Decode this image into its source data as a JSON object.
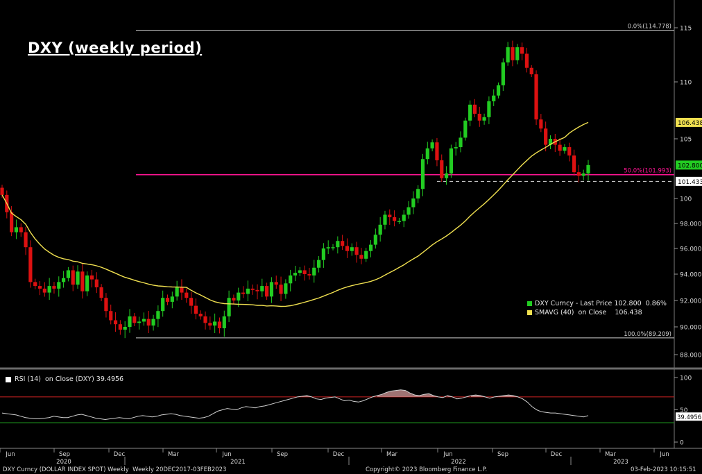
{
  "title": "DXY (weekly period)",
  "colors": {
    "up": "#22cc22",
    "down": "#dd1111",
    "sma": "#f0e050",
    "fib": "#ff1493",
    "rsi": "#d0d0d0",
    "rsi_upper": "#cc2222",
    "rsi_lower": "#22aa22"
  },
  "legend": {
    "series1": "DXY Curncy - Last Price 102.800  0.86%",
    "series2": "SMAVG (40)  on Close    106.438"
  },
  "rsi_label": "RSI (14)  on Close (DXY) 39.4956",
  "footer": {
    "left": "DXY Curncy (DOLLAR INDEX SPOT) Weekly  Weekly 20DEC2017-03FEB2023",
    "center": "Copyright© 2023 Bloomberg Finance L.P.",
    "right": "03-Feb-2023 10:15:51"
  },
  "chart_data": [
    {
      "type": "candlestick",
      "title": "DXY (weekly period)",
      "y_ticks": [
        "88.000",
        "90.000",
        "92.000",
        "94.000",
        "96.000",
        "98.000",
        "100",
        "105",
        "110",
        "115"
      ],
      "x_month_labels": [
        "Jun",
        "Sep",
        "Dec",
        "Mar",
        "Jun",
        "Sep",
        "Dec",
        "Mar",
        "Jun",
        "Sep",
        "Dec",
        "Mar",
        "Jun"
      ],
      "x_year_labels": [
        "2020",
        "2021",
        "2022",
        "2023"
      ],
      "close": [
        100.3,
        98.9,
        97.3,
        97.7,
        97.3,
        96.1,
        93.4,
        93.1,
        92.9,
        92.6,
        93.1,
        92.9,
        93.4,
        93.7,
        94.3,
        93.2,
        94.2,
        92.7,
        93.9,
        93.6,
        93.0,
        92.2,
        91.2,
        90.5,
        90.2,
        89.8,
        90.0,
        90.8,
        90.3,
        90.4,
        90.6,
        90.1,
        90.6,
        91.2,
        92.2,
        91.9,
        92.3,
        93.0,
        92.6,
        92.2,
        91.6,
        91.0,
        90.8,
        90.3,
        90.1,
        90.4,
        89.9,
        90.8,
        92.2,
        92.0,
        92.6,
        92.5,
        92.9,
        92.8,
        92.7,
        93.1,
        92.3,
        93.4,
        93.2,
        92.5,
        93.3,
        93.9,
        94.1,
        94.3,
        94.0,
        93.9,
        94.5,
        95.1,
        96.0,
        96.1,
        96.1,
        96.6,
        96.2,
        95.8,
        96.1,
        95.5,
        95.2,
        95.8,
        96.3,
        97.1,
        97.9,
        98.7,
        98.5,
        98.2,
        98.2,
        98.7,
        99.3,
        100.0,
        100.8,
        103.3,
        104.2,
        104.7,
        103.2,
        101.7,
        102.1,
        104.2,
        104.3,
        105.1,
        106.6,
        108.0,
        107.2,
        106.6,
        106.9,
        108.3,
        108.8,
        109.7,
        111.8,
        113.2,
        112.0,
        113.2,
        112.6,
        111.3,
        110.7,
        106.7,
        105.9,
        104.5,
        105.0,
        104.5,
        104.0,
        104.3,
        103.6,
        102.2,
        101.9,
        102.1,
        102.8
      ],
      "sma_label": "SMAVG (40) on Close",
      "sma_last": 106.438,
      "last_price": 102.8,
      "last_price_change": "0.86%",
      "fib_levels": [
        {
          "label": "0.0%(114.778)",
          "value": 114.778
        },
        {
          "label": "50.0%(101.993)",
          "value": 101.993
        },
        {
          "label": "100.0%(89.209)",
          "value": 89.209
        }
      ],
      "support_level": 101.433,
      "axis_badges": [
        "106.438",
        "102.800",
        "101.433"
      ],
      "grid": false
    },
    {
      "type": "line",
      "name": "RSI (14) on Close (DXY)",
      "y_ticks": [
        "100",
        "50",
        "0"
      ],
      "y_range": [
        0,
        100
      ],
      "upper_band": 70,
      "lower_band": 30,
      "last_value": "39.4956",
      "values": [
        45,
        44,
        43,
        42,
        40,
        38,
        37,
        36,
        36,
        37,
        38,
        40,
        39,
        38,
        38,
        40,
        42,
        43,
        41,
        39,
        37,
        36,
        35,
        36,
        37,
        38,
        37,
        36,
        38,
        40,
        41,
        40,
        39,
        40,
        42,
        43,
        44,
        43,
        41,
        40,
        39,
        38,
        37,
        38,
        40,
        44,
        48,
        50,
        52,
        51,
        50,
        53,
        55,
        54,
        53,
        55,
        56,
        58,
        60,
        62,
        64,
        66,
        68,
        70,
        71,
        72,
        70,
        67,
        66,
        68,
        69,
        70,
        67,
        64,
        65,
        63,
        62,
        64,
        67,
        70,
        72,
        74,
        77,
        79,
        80,
        81,
        80,
        76,
        73,
        72,
        74,
        75,
        72,
        70,
        69,
        72,
        70,
        67,
        68,
        70,
        72,
        73,
        72,
        70,
        68,
        70,
        71,
        72,
        73,
        72,
        70,
        67,
        62,
        55,
        50,
        47,
        46,
        45,
        45,
        44,
        43,
        42,
        41,
        40,
        39,
        41
      ]
    }
  ]
}
